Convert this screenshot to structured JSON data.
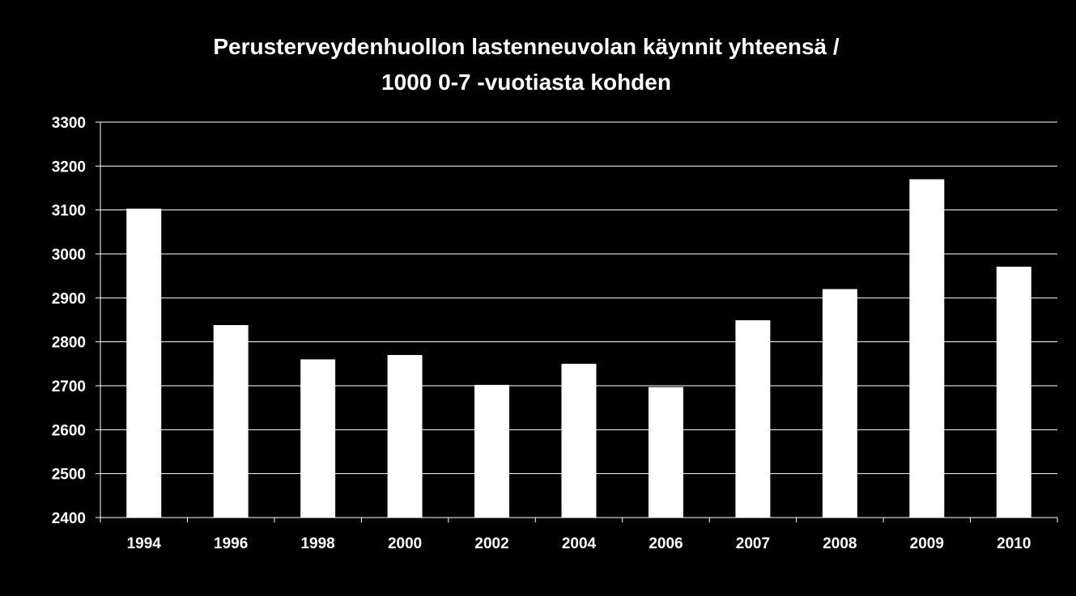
{
  "chart_data": {
    "type": "bar",
    "title_lines": [
      "Perusterveydenhuollon lastenneuvolan käynnit yhteensä /",
      "1000 0-7 -vuotiasta kohden"
    ],
    "categories": [
      "1994",
      "1996",
      "1998",
      "2000",
      "2002",
      "2004",
      "2006",
      "2007",
      "2008",
      "2009",
      "2010"
    ],
    "values": [
      3103,
      2838,
      2760,
      2770,
      2702,
      2750,
      2697,
      2849,
      2920,
      3170,
      2971
    ],
    "xlabel": "",
    "ylabel": "",
    "ylim": [
      2400,
      3300
    ],
    "yticks": [
      "2400",
      "2500",
      "2600",
      "2700",
      "2800",
      "2900",
      "3000",
      "3100",
      "3200",
      "3300"
    ],
    "grid": true,
    "legend": "none",
    "colors": {
      "background": "#000000",
      "bar": "#ffffff",
      "grid": "#ffffff",
      "text": "#ffffff"
    }
  }
}
